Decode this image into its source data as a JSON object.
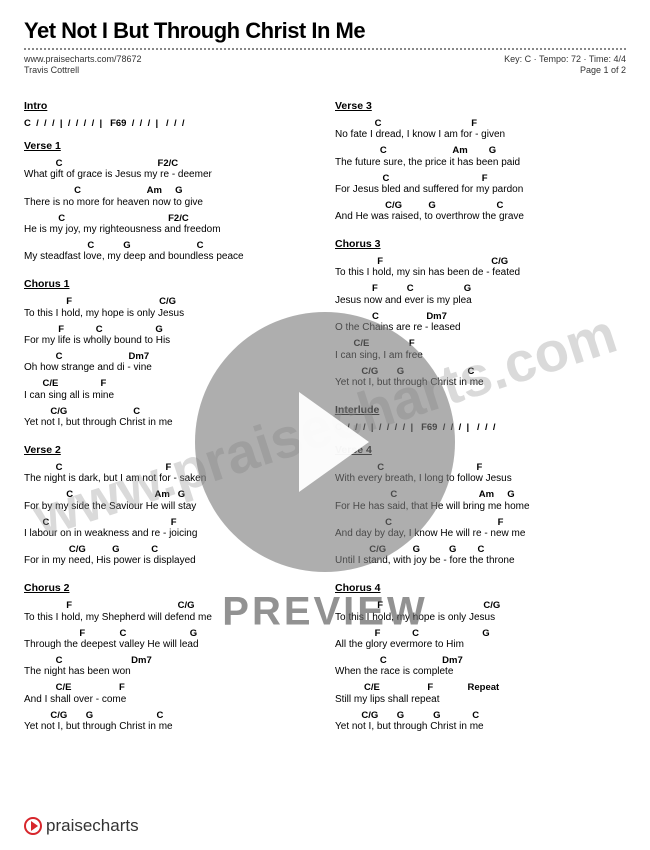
{
  "title": "Yet Not I But Through Christ In Me",
  "meta": {
    "url": "www.praisecharts.com/78672",
    "artist": "Travis Cottrell",
    "key": "Key: C",
    "tempo": "Tempo: 72",
    "time": "Time: 4/4",
    "page": "Page 1 of 2"
  },
  "watermark": "www.praisecharts.com",
  "preview": "PREVIEW",
  "footer": {
    "brand": "praisecharts"
  },
  "left": {
    "intro": {
      "label": "Intro",
      "chords": "C  /  /  /  |  /  /  /  /  |   F69  /  /  /  |   /  /  /"
    },
    "verse1": {
      "label": "Verse 1",
      "lines": [
        {
          "ch": "            C                                    F2/C",
          "ly": "What gift of grace is Jesus my re - deemer"
        },
        {
          "ch": "                   C                         Am     G",
          "ly": "There is no more for heaven now to give"
        },
        {
          "ch": "             C                                       F2/C",
          "ly": "He is my joy, my righteousness and freedom"
        },
        {
          "ch": "                        C           G                         C",
          "ly": "My steadfast love, my deep and boundless peace"
        }
      ]
    },
    "chorus1": {
      "label": "Chorus 1",
      "lines": [
        {
          "ch": "                F                                 C/G",
          "ly": "To this I hold, my hope is only Jesus"
        },
        {
          "ch": "             F            C                    G",
          "ly": "For my life is wholly bound to His"
        },
        {
          "ch": "            C                         Dm7",
          "ly": "Oh how strange and di - vine"
        },
        {
          "ch": "       C/E                F",
          "ly": "I can sing all is mine"
        },
        {
          "ch": "          C/G                         C",
          "ly": "Yet not  I,   but through Christ in me"
        }
      ]
    },
    "verse2": {
      "label": "Verse 2",
      "lines": [
        {
          "ch": "            C                                       F",
          "ly": "The night is dark, but I am not for - saken"
        },
        {
          "ch": "                C                               Am   G",
          "ly": "For by my side the Saviour  He  will stay"
        },
        {
          "ch": "       C                                              F",
          "ly": "I labour on in weakness and re - joicing"
        },
        {
          "ch": "                 C/G          G            C",
          "ly": "For in my need, His power is displayed"
        }
      ]
    },
    "chorus2": {
      "label": "Chorus 2",
      "lines": [
        {
          "ch": "                F                                        C/G",
          "ly": "To this I hold, my Shepherd will defend me"
        },
        {
          "ch": "                     F             C                        G",
          "ly": "Through the deepest valley He will lead"
        },
        {
          "ch": "            C                          Dm7",
          "ly": "The night has been won"
        },
        {
          "ch": "            C/E                  F",
          "ly": "And I shall over - come"
        },
        {
          "ch": "          C/G       G                        C",
          "ly": "Yet not I, but through Christ in me"
        }
      ]
    }
  },
  "right": {
    "verse3": {
      "label": "Verse 3",
      "lines": [
        {
          "ch": "               C                                  F",
          "ly": "No fate I dread, I know I am for - given"
        },
        {
          "ch": "                 C                         Am        G",
          "ly": "The future sure, the price it has been paid"
        },
        {
          "ch": "                  C                                   F",
          "ly": "For Jesus bled and suffered for my pardon"
        },
        {
          "ch": "                   C/G          G                       C",
          "ly": "And He was raised, to overthrow the grave"
        }
      ]
    },
    "chorus3": {
      "label": "Chorus 3",
      "lines": [
        {
          "ch": "                F                                         C/G",
          "ly": "To this I hold, my sin has been de - feated"
        },
        {
          "ch": "              F           C                   G",
          "ly": "Jesus now and ever is my plea"
        },
        {
          "ch": "              C                  Dm7",
          "ly": "O the Chains are re - leased"
        },
        {
          "ch": "       C/E               F",
          "ly": "I can sing, I am free"
        },
        {
          "ch": "          C/G       G                        C",
          "ly": "Yet not I, but through Christ in me"
        }
      ]
    },
    "interlude": {
      "label": "Interlude",
      "chords": "C  /  /  /  |  /  /  /  /  |   F69  /  /  /  |   /  /  /"
    },
    "verse4": {
      "label": "Verse 4",
      "lines": [
        {
          "ch": "                C                                   F",
          "ly": "With every breath, I long to follow Jesus"
        },
        {
          "ch": "                     C                               Am     G",
          "ly": "For He has said, that He will bring me home"
        },
        {
          "ch": "                   C                                        F",
          "ly": "And day by day, I know He will re - new me"
        },
        {
          "ch": "             C/G          G           G        C",
          "ly": "Until I stand, with joy be - fore the throne"
        }
      ]
    },
    "chorus4": {
      "label": "Chorus 4",
      "lines": [
        {
          "ch": "                F                                      C/G",
          "ly": "To this I hold, my hope is only Jesus"
        },
        {
          "ch": "               F            C                        G",
          "ly": "All the glory evermore to Him"
        },
        {
          "ch": "                 C                     Dm7",
          "ly": "When the race is complete"
        },
        {
          "ch": "           C/E                  F             Repeat",
          "ly": "Still my lips shall repeat"
        },
        {
          "ch": "          C/G       G           G            C",
          "ly": "Yet not I, but through Christ in me"
        }
      ]
    }
  }
}
